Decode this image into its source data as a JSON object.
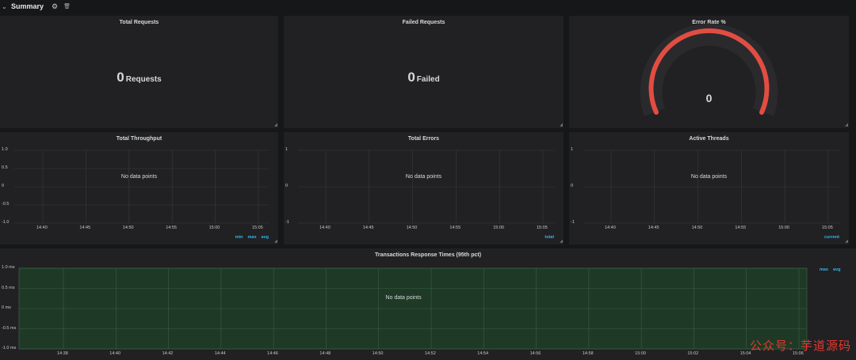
{
  "row": {
    "collapse_icon": "chevron-down-icon",
    "title": "Summary",
    "settings_icon": "gear-icon",
    "delete_icon": "trash-icon"
  },
  "stats": {
    "total_requests": {
      "title": "Total Requests",
      "value": "0",
      "unit": "Requests"
    },
    "failed_requests": {
      "title": "Failed Requests",
      "value": "0",
      "unit": "Failed"
    },
    "error_rate": {
      "title": "Error Rate %",
      "value": "0",
      "gauge_color": "#e24d42"
    }
  },
  "graphs": {
    "throughput": {
      "title": "Total Throughput",
      "no_data": "No data points",
      "y_ticks": [
        "1.0",
        "0.5",
        "0",
        "-0.5",
        "-1.0"
      ],
      "x_ticks": [
        "14:40",
        "14:45",
        "14:50",
        "14:55",
        "15:00",
        "15:05"
      ],
      "legend": [
        "min",
        "max",
        "avg"
      ]
    },
    "errors": {
      "title": "Total Errors",
      "no_data": "No data points",
      "y_ticks": [
        "1",
        "0",
        "-1"
      ],
      "x_ticks": [
        "14:40",
        "14:45",
        "14:50",
        "14:55",
        "15:00",
        "15:05"
      ],
      "legend": [
        "total"
      ]
    },
    "threads": {
      "title": "Active Threads",
      "no_data": "No data points",
      "y_ticks": [
        "1",
        "0",
        "-1"
      ],
      "x_ticks": [
        "14:40",
        "14:45",
        "14:50",
        "14:55",
        "15:00",
        "15:05"
      ],
      "legend": [
        "current"
      ]
    },
    "response_times": {
      "title": "Transactions Response Times (95th pct)",
      "no_data": "No data points",
      "y_ticks": [
        "1.0 ms",
        "0.5 ms",
        "0 ms",
        "-0.5 ms",
        "-1.0 ms"
      ],
      "x_ticks": [
        "14:38",
        "14:40",
        "14:42",
        "14:44",
        "14:46",
        "14:48",
        "14:50",
        "14:52",
        "14:54",
        "14:56",
        "14:58",
        "15:00",
        "15:02",
        "15:04",
        "15:06"
      ],
      "legend": [
        "max",
        "avg"
      ],
      "fill_color": "#1e3a26"
    }
  },
  "colors": {
    "background": "#161719",
    "panel": "#212124",
    "legend": "#33b5e5",
    "grid": "#3a3a3d"
  },
  "watermark": "公众号：芋道源码"
}
